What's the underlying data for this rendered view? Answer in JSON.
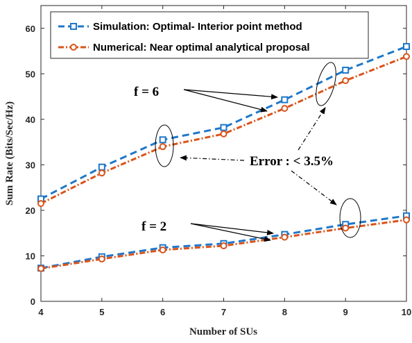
{
  "chart_data": {
    "type": "line",
    "xlabel": "Number of SUs",
    "ylabel": "Sum Rate (Bits/Sec/Hz)",
    "xlim": [
      4,
      10
    ],
    "ylim": [
      0,
      65
    ],
    "xticks": [
      4,
      5,
      6,
      7,
      8,
      9,
      10
    ],
    "yticks": [
      0,
      10,
      20,
      30,
      40,
      50,
      60
    ],
    "grid": false,
    "legend_position": "top-left",
    "series": [
      {
        "name": "Simulation: Optimal- Interior point method",
        "color": "#1f77c8",
        "line": "dashed",
        "marker": "square",
        "groups": [
          {
            "x": [
              4,
              5,
              6,
              7,
              8,
              9,
              10
            ],
            "y": [
              22.5,
              29.5,
              35.5,
              38.2,
              44.3,
              50.8,
              56.0
            ]
          },
          {
            "x": [
              4,
              5,
              6,
              7,
              8,
              9,
              10
            ],
            "y": [
              7.3,
              9.8,
              11.8,
              12.7,
              14.7,
              16.9,
              18.8
            ]
          }
        ]
      },
      {
        "name": "Numerical: Near optimal analytical proposal",
        "color": "#d9541a",
        "line": "dash-dot",
        "marker": "circle",
        "groups": [
          {
            "x": [
              4,
              5,
              6,
              7,
              8,
              9,
              10
            ],
            "y": [
              21.5,
              28.2,
              34.0,
              36.8,
              42.4,
              48.5,
              53.8
            ]
          },
          {
            "x": [
              4,
              5,
              6,
              7,
              8,
              9,
              10
            ],
            "y": [
              7.2,
              9.3,
              11.3,
              12.2,
              14.1,
              16.1,
              17.9
            ]
          }
        ]
      }
    ],
    "annotations": [
      "f = 6",
      "f = 2",
      "Error : < 3.5%"
    ]
  }
}
